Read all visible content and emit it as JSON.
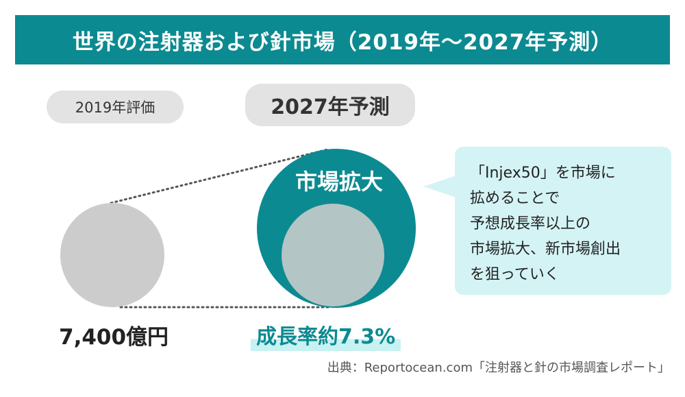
{
  "title": "世界の注射器および針市場（2019年～2027年予測）",
  "labels": {
    "year_2019": "2019年評価",
    "year_2027": "2027年予測",
    "market_expansion": "市場拡大",
    "value_2019": "7,400億円",
    "growth_rate": "成長率約7.3%"
  },
  "callout": {
    "lines": [
      "「Injex50」を市場に",
      "拡めることで",
      "予想成長率以上の",
      "市場拡大、新市場創出",
      "を狙っていく"
    ]
  },
  "source": "出典：Reportocean.com「注射器と針の市場調査レポート」",
  "colors": {
    "teal": "#0c8a91",
    "gray_circle": "#cccccc",
    "inner_circle": "#b4c5c5",
    "callout_bg": "#d4f3f5"
  }
}
